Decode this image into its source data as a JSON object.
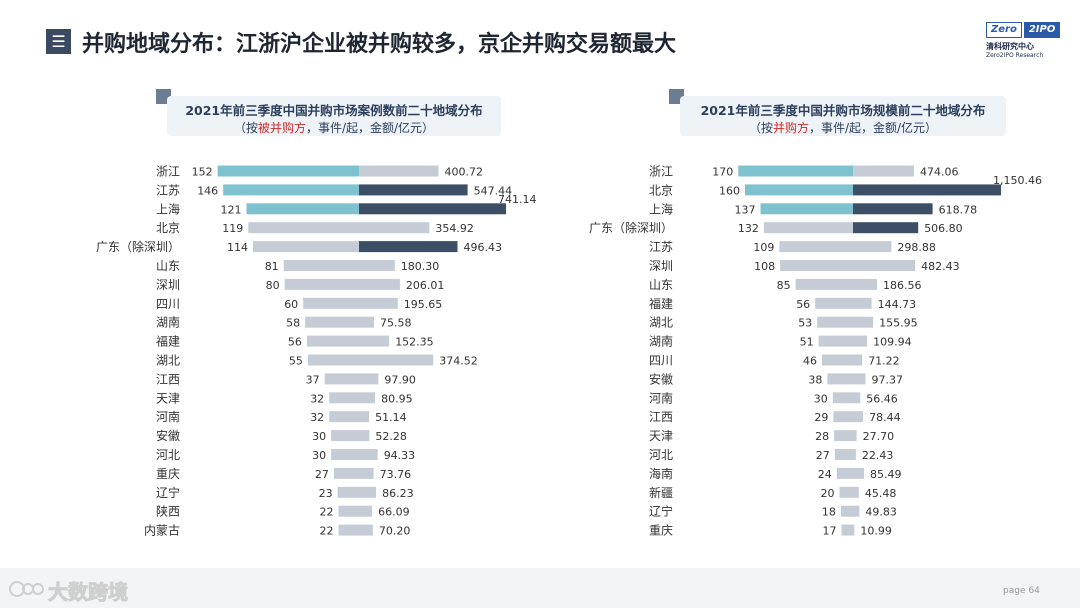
{
  "header": {
    "menu_icon": "menu-icon",
    "title": "并购地域分布：江浙沪企业被并购较多，京企并购交易额最大"
  },
  "logo": {
    "zero": "Zero",
    "ipo": "2IPO",
    "cn": "清科研究中心",
    "en": "Zero2IPO Research"
  },
  "footer": {
    "watermark": "大数跨境",
    "page": "page  64"
  },
  "panels": [
    {
      "title_l1": "2021年前三季度中国并购市场案例数前二十地域分布",
      "title_l2_pre": "（按",
      "title_l2_hl": "被并购方",
      "title_l2_post": "，事件/起，金额/亿元）"
    },
    {
      "title_l1": "2021年前三季度中国并购市场规模前二十地域分布",
      "title_l2_pre": "（按",
      "title_l2_hl": "并购方",
      "title_l2_post": "，事件/起，金额/亿元）"
    }
  ],
  "chart_data": [
    {
      "type": "bar",
      "title": "2021年前三季度中国并购市场案例数前二十地域分布",
      "categories": [
        "浙江",
        "江苏",
        "上海",
        "北京",
        "广东（除深圳）",
        "山东",
        "深圳",
        "四川",
        "湖南",
        "福建",
        "湖北",
        "江西",
        "天津",
        "河南",
        "安徽",
        "河北",
        "重庆",
        "辽宁",
        "陕西",
        "内蒙古"
      ],
      "series": [
        {
          "name": "事件/起",
          "values": [
            152,
            146,
            121,
            119,
            114,
            81,
            80,
            60,
            58,
            56,
            55,
            37,
            32,
            32,
            30,
            30,
            27,
            23,
            22,
            22
          ]
        },
        {
          "name": "金额/亿元",
          "values": [
            400.72,
            547.44,
            741.14,
            354.92,
            496.43,
            180.3,
            206.01,
            195.65,
            75.58,
            152.35,
            374.52,
            97.9,
            80.95,
            51.14,
            52.28,
            94.33,
            73.76,
            86.23,
            66.09,
            70.2
          ]
        }
      ],
      "count_labels": [
        "152",
        "146",
        "121",
        "119",
        "114",
        "81",
        "80",
        "60",
        "58",
        "56",
        "55",
        "37",
        "32",
        "32",
        "30",
        "30",
        "27",
        "23",
        "22",
        "22"
      ],
      "amount_labels": [
        "400.72",
        "547.44",
        "741.14",
        "354.92",
        "496.43",
        "180.30",
        "206.01",
        "195.65",
        "75.58",
        "152.35",
        "374.52",
        "97.90",
        "80.95",
        "51.14",
        "52.28",
        "94.33",
        "73.76",
        "86.23",
        "66.09",
        "70.20"
      ],
      "highlight_count": [
        true,
        true,
        true,
        false,
        false,
        false,
        false,
        false,
        false,
        false,
        false,
        false,
        false,
        false,
        false,
        false,
        false,
        false,
        false,
        false
      ],
      "highlight_amount": [
        false,
        true,
        true,
        false,
        true,
        false,
        false,
        false,
        false,
        false,
        false,
        false,
        false,
        false,
        false,
        false,
        false,
        false,
        false,
        false
      ],
      "colors": {
        "count_hl": "#7ec1cf",
        "amount_hl": "#3d4f66",
        "muted": "#c6ccd6"
      }
    },
    {
      "type": "bar",
      "title": "2021年前三季度中国并购市场规模前二十地域分布",
      "categories": [
        "浙江",
        "北京",
        "上海",
        "广东（除深圳）",
        "江苏",
        "深圳",
        "山东",
        "福建",
        "湖北",
        "湖南",
        "四川",
        "安徽",
        "河南",
        "江西",
        "天津",
        "河北",
        "海南",
        "新疆",
        "辽宁",
        "重庆"
      ],
      "series": [
        {
          "name": "事件/起",
          "values": [
            170,
            160,
            137,
            132,
            109,
            108,
            85,
            56,
            53,
            51,
            46,
            38,
            30,
            29,
            28,
            27,
            24,
            20,
            18,
            17
          ]
        },
        {
          "name": "金额/亿元",
          "values": [
            474.06,
            1150.46,
            618.78,
            506.8,
            298.88,
            482.43,
            186.56,
            144.73,
            155.95,
            109.94,
            71.22,
            97.37,
            56.46,
            78.44,
            27.7,
            22.43,
            85.49,
            45.48,
            49.83,
            10.99
          ]
        }
      ],
      "count_labels": [
        "170",
        "160",
        "137",
        "132",
        "109",
        "108",
        "85",
        "56",
        "53",
        "51",
        "46",
        "38",
        "30",
        "29",
        "28",
        "27",
        "24",
        "20",
        "18",
        "17"
      ],
      "amount_labels": [
        "474.06",
        "1,150.46",
        "618.78",
        "506.80",
        "298.88",
        "482.43",
        "186.56",
        "144.73",
        "155.95",
        "109.94",
        "71.22",
        "97.37",
        "56.46",
        "78.44",
        "27.70",
        "22.43",
        "85.49",
        "45.48",
        "49.83",
        "10.99"
      ],
      "highlight_count": [
        true,
        true,
        true,
        false,
        false,
        false,
        false,
        false,
        false,
        false,
        false,
        false,
        false,
        false,
        false,
        false,
        false,
        false,
        false,
        false
      ],
      "highlight_amount": [
        false,
        true,
        true,
        true,
        false,
        false,
        false,
        false,
        false,
        false,
        false,
        false,
        false,
        false,
        false,
        false,
        false,
        false,
        false,
        false
      ],
      "colors": {
        "count_hl": "#7ec1cf",
        "amount_hl": "#3d4f66",
        "muted": "#c6ccd6"
      }
    }
  ]
}
